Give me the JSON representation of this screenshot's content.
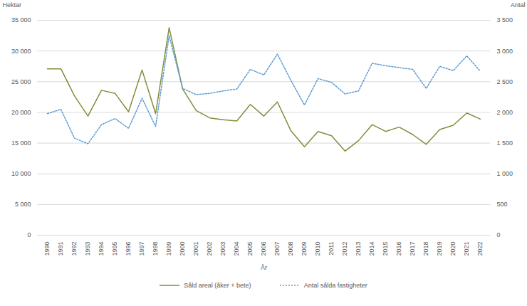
{
  "chart_data": {
    "type": "line",
    "xlabel": "År",
    "ylabel": "Hektar",
    "y2label": "Antal",
    "categories": [
      "1990",
      "1991",
      "1992",
      "1993",
      "1994",
      "1995",
      "1996",
      "1997",
      "1998",
      "1999",
      "2000",
      "2001",
      "2002",
      "2003",
      "2004",
      "2005",
      "2006",
      "2007",
      "2008",
      "2009",
      "2010",
      "2011",
      "2012",
      "2013",
      "2014",
      "2015",
      "2016",
      "2017",
      "2018",
      "2019",
      "2020",
      "2021",
      "2022"
    ],
    "series": [
      {
        "name": "Såld areal (åker + bete)",
        "color": "#7f8f3a",
        "line_style": "solid",
        "values": [
          27100,
          27100,
          22700,
          19400,
          23600,
          23100,
          20100,
          26900,
          19800,
          33800,
          23800,
          20300,
          19100,
          18800,
          18600,
          21300,
          19400,
          21700,
          17000,
          14400,
          16900,
          16200,
          13700,
          15400,
          18000,
          16900,
          17600,
          16400,
          14800,
          17200,
          17900,
          19900,
          18900
        ]
      },
      {
        "name": "Antal sålda fastigheter",
        "color": "#5b9bd5",
        "line_style": "dotted",
        "axis": "y2",
        "values": [
          1980,
          2050,
          1580,
          1490,
          1800,
          1900,
          1740,
          2230,
          1770,
          3250,
          2390,
          2290,
          2310,
          2350,
          2380,
          2700,
          2610,
          2950,
          2520,
          2120,
          2550,
          2490,
          2300,
          2350,
          2800,
          2760,
          2730,
          2700,
          2390,
          2750,
          2680,
          2920,
          2670
        ]
      }
    ],
    "ylim": [
      0,
      35000
    ],
    "yticks": [
      0,
      {
        "value": 5000,
        "label": "5 000"
      },
      {
        "value": 10000,
        "label": "10 000"
      },
      {
        "value": 15000,
        "label": "15 000"
      },
      {
        "value": 20000,
        "label": "20 000"
      },
      {
        "value": 25000,
        "label": "25 000"
      },
      {
        "value": 30000,
        "label": "30 000"
      },
      {
        "value": 35000,
        "label": "35 000"
      }
    ],
    "y2lim": [
      0,
      3500
    ],
    "y2ticks": [
      0,
      500,
      {
        "value": 1000,
        "label": "1 000"
      },
      {
        "value": 1500,
        "label": "1 500"
      },
      {
        "value": 2000,
        "label": "2 000"
      },
      {
        "value": 2500,
        "label": "2 500"
      },
      {
        "value": 3000,
        "label": "3 000"
      },
      {
        "value": 3500,
        "label": "3 500"
      }
    ],
    "grid": true,
    "legend": "bottom"
  }
}
